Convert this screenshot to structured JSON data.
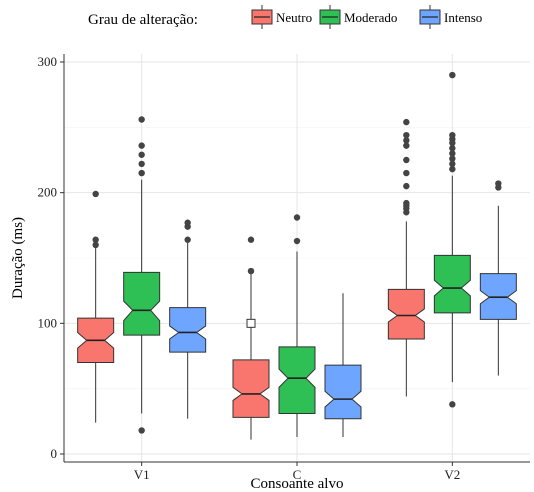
{
  "chart_data": {
    "type": "boxplot",
    "notched": true,
    "xlabel": "Consoante alvo",
    "ylabel": "Duração (ms)",
    "ylim": [
      0,
      305
    ],
    "yticks": [
      0,
      100,
      200,
      300
    ],
    "categories": [
      "V1",
      "C",
      "V2"
    ],
    "legend": {
      "title": "Grau de alteração:",
      "position": "top"
    },
    "grid": true,
    "series": [
      {
        "name": "Neutro",
        "color": "#F8766D",
        "boxes": [
          {
            "category": "V1",
            "whisker_low": 24,
            "q1": 70,
            "median": 87,
            "q3": 104,
            "whisker_high": 158,
            "notch_low": 81,
            "notch_high": 93,
            "outliers": [
              164,
              199,
              160
            ]
          },
          {
            "category": "C",
            "whisker_low": 11,
            "q1": 28,
            "median": 46,
            "q3": 72,
            "whisker_high": 138,
            "notch_low": 41,
            "notch_high": 51,
            "outliers": [
              140,
              164
            ]
          },
          {
            "category": "V2",
            "whisker_low": 44,
            "q1": 88,
            "median": 106,
            "q3": 126,
            "whisker_high": 178,
            "notch_low": 101,
            "notch_high": 111,
            "outliers": [
              185,
              188,
              190,
              192,
              205,
              215,
              225,
              236,
              240,
              244,
              254
            ]
          }
        ]
      },
      {
        "name": "Moderado",
        "color": "#2EBF55",
        "boxes": [
          {
            "category": "V1",
            "whisker_low": 31,
            "q1": 91,
            "median": 110,
            "q3": 139,
            "whisker_high": 210,
            "notch_low": 102,
            "notch_high": 117,
            "outliers": [
              18,
              215,
              222,
              229,
              236,
              256
            ]
          },
          {
            "category": "C",
            "whisker_low": 13,
            "q1": 31,
            "median": 58,
            "q3": 82,
            "whisker_high": 155,
            "notch_low": 51,
            "notch_high": 65,
            "outliers": [
              163,
              181
            ]
          },
          {
            "category": "V2",
            "whisker_low": 55,
            "q1": 108,
            "median": 127,
            "q3": 152,
            "whisker_high": 213,
            "notch_low": 121,
            "notch_high": 133,
            "outliers": [
              38,
              218,
              222,
              226,
              230,
              234,
              238,
              241,
              244,
              290
            ]
          }
        ]
      },
      {
        "name": "Intenso",
        "color": "#6EA6FF",
        "boxes": [
          {
            "category": "V1",
            "whisker_low": 27,
            "q1": 78,
            "median": 93,
            "q3": 112,
            "whisker_high": 163,
            "notch_low": 88,
            "notch_high": 98,
            "outliers": [
              164,
              174,
              177
            ]
          },
          {
            "category": "C",
            "whisker_low": 13,
            "q1": 27,
            "median": 42,
            "q3": 68,
            "whisker_high": 123,
            "notch_low": 36,
            "notch_high": 48,
            "outliers": []
          },
          {
            "category": "V2",
            "whisker_low": 60,
            "q1": 103,
            "median": 120,
            "q3": 138,
            "whisker_high": 190,
            "notch_low": 115,
            "notch_high": 125,
            "outliers": [
              204,
              207
            ]
          }
        ]
      }
    ],
    "annotations": [
      {
        "type": "hollow-square-marker",
        "category": "C",
        "series": "Neutro",
        "y": 100
      }
    ]
  }
}
